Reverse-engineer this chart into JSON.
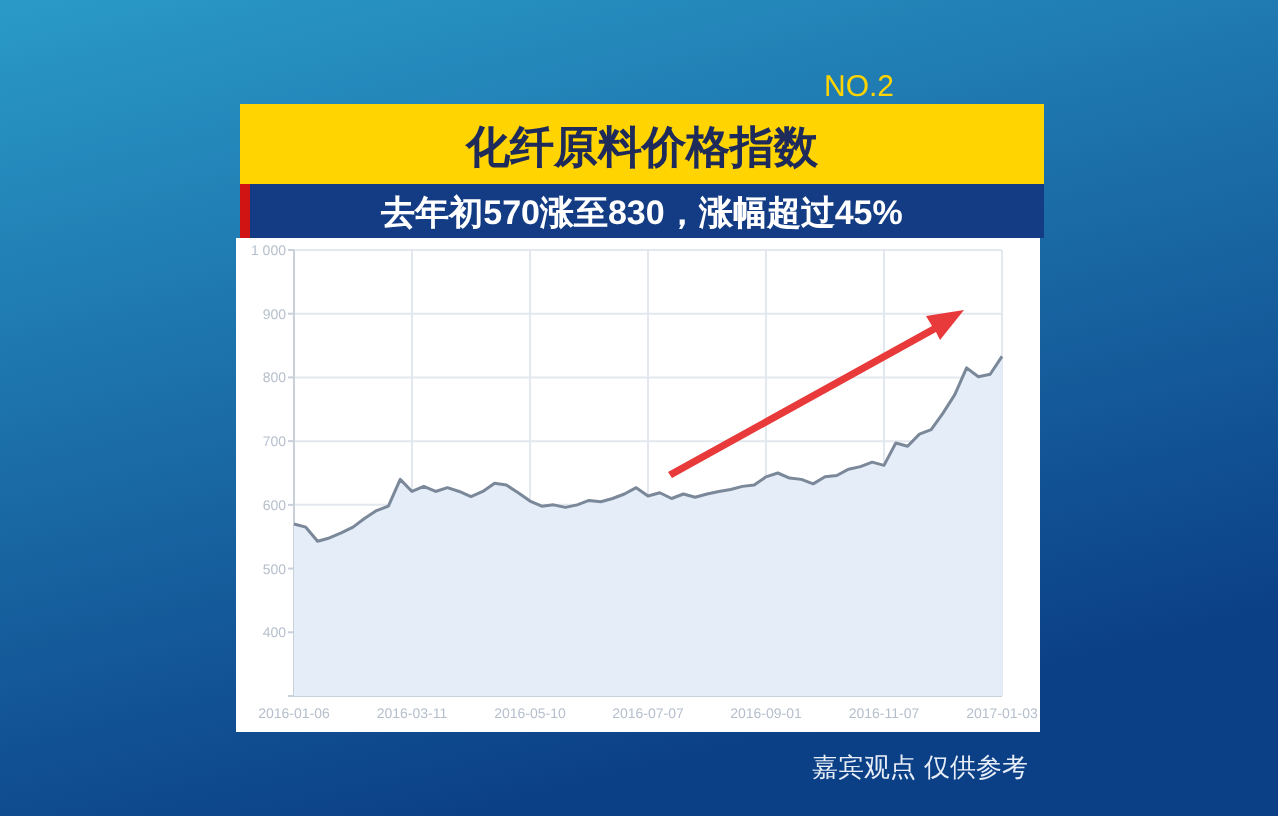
{
  "chart_data": {
    "type": "area",
    "title": "化纤原料价格指数",
    "subtitle": "去年初570涨至830，涨幅超过45%",
    "categories": [
      "2016-01-06",
      null,
      null,
      null,
      null,
      null,
      null,
      null,
      null,
      null,
      "2016-03-11",
      null,
      null,
      null,
      null,
      null,
      null,
      null,
      null,
      null,
      "2016-05-10",
      null,
      null,
      null,
      null,
      null,
      null,
      null,
      null,
      null,
      "2016-07-07",
      null,
      null,
      null,
      null,
      null,
      null,
      null,
      null,
      null,
      "2016-09-01",
      null,
      null,
      null,
      null,
      null,
      null,
      null,
      null,
      null,
      "2016-11-07",
      null,
      null,
      null,
      null,
      null,
      null,
      null,
      null,
      null,
      "2017-01-03"
    ],
    "values": [
      570,
      565,
      543,
      548,
      556,
      565,
      579,
      591,
      598,
      640,
      621,
      629,
      621,
      627,
      621,
      613,
      621,
      634,
      631,
      619,
      606,
      598,
      600,
      596,
      600,
      607,
      605,
      610,
      617,
      627,
      614,
      619,
      610,
      617,
      612,
      617,
      621,
      624,
      629,
      631,
      644,
      650,
      642,
      640,
      633,
      644,
      646,
      656,
      660,
      667,
      662,
      697,
      692,
      711,
      718,
      744,
      773,
      815,
      801,
      805,
      833
    ],
    "color": "#7a8899",
    "ylim": [
      300,
      1000
    ],
    "yticks": [
      {
        "value": 300,
        "label": null
      },
      400,
      500,
      600,
      700,
      800,
      900,
      {
        "value": 1000,
        "label": "1 000"
      }
    ],
    "grid": true,
    "annotations": [
      "NO.2",
      "嘉宾观点 仅供参考"
    ]
  }
}
